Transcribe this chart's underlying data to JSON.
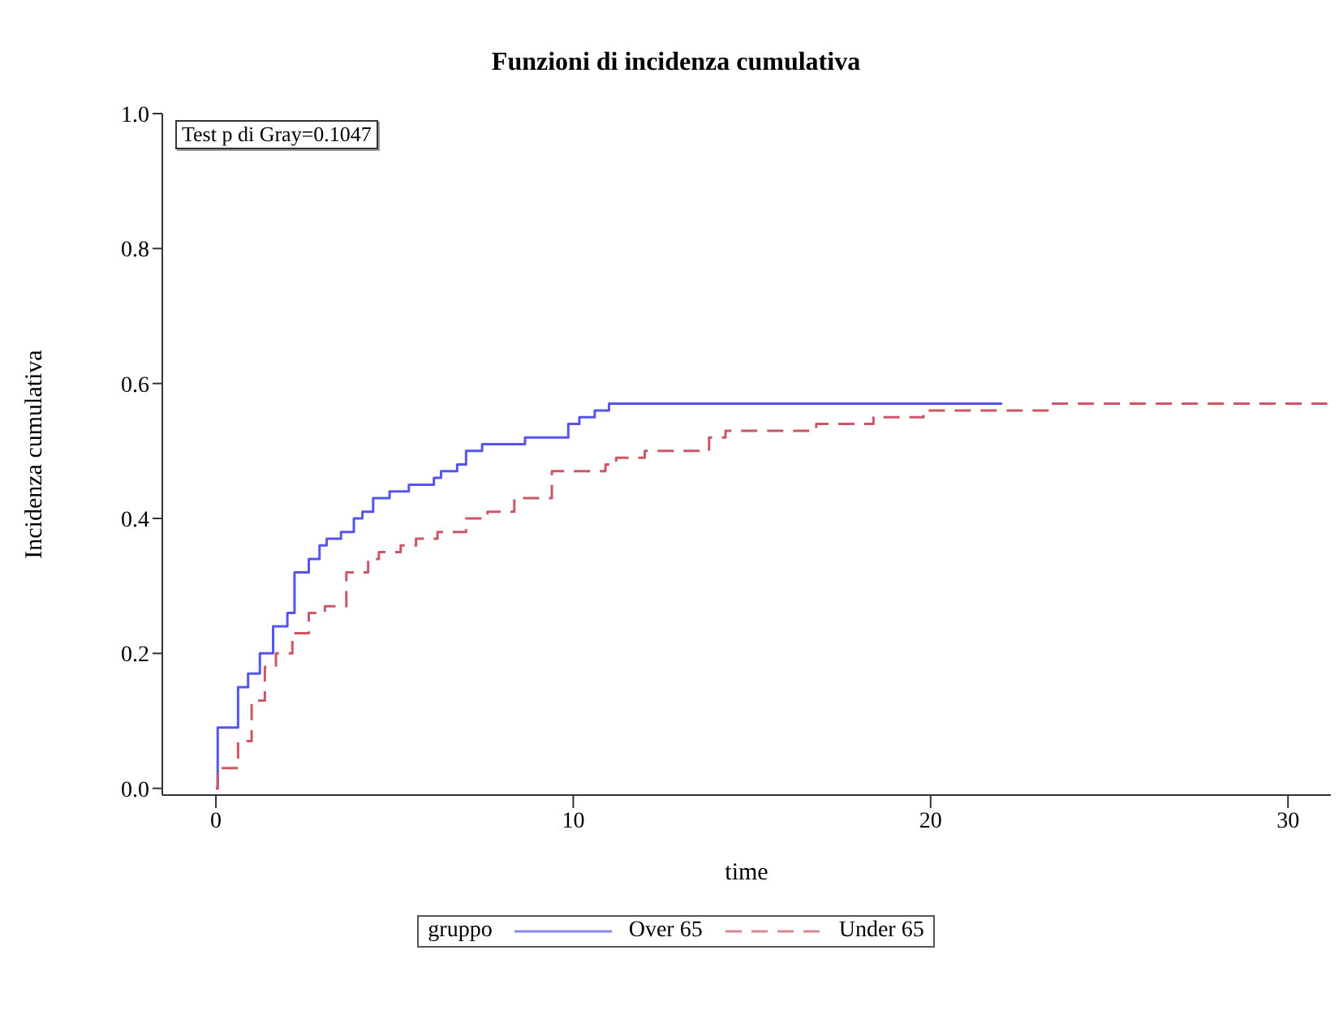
{
  "chart_data": {
    "type": "step",
    "title": "Funzioni di incidenza cumulativa",
    "xlabel": "time",
    "ylabel": "Incidenza cumulativa",
    "legend_title": "gruppo",
    "annotations": [
      "Test p di Gray=0.1047"
    ],
    "xlim": [
      -1.5,
      31.2
    ],
    "xticks": [
      0,
      10,
      20,
      30
    ],
    "ylim": [
      -0.01,
      1.0
    ],
    "yticks": [
      {
        "value": 0,
        "label": "0.0"
      },
      {
        "value": 0.2,
        "label": "0.2"
      },
      {
        "value": 0.4,
        "label": "0.4"
      },
      {
        "value": 0.6,
        "label": "0.6"
      },
      {
        "value": 0.8,
        "label": "0.8"
      },
      {
        "value": 1,
        "label": "1.0"
      }
    ],
    "grid": false,
    "legend": "bottom",
    "marker": "none",
    "series": [
      {
        "name": "Over 65",
        "color": "#5555ee",
        "line_style": "solid",
        "x": [
          0,
          0.05,
          0.62,
          0.9,
          1.23,
          1.45,
          1.6,
          2.0,
          2.2,
          2.6,
          2.9,
          3.1,
          3.5,
          3.86,
          4.1,
          4.4,
          4.86,
          5.4,
          6.1,
          6.3,
          6.75,
          7.0,
          7.45,
          8.65,
          9.86,
          10.17,
          10.6,
          11.0,
          22.0
        ],
        "values": [
          0,
          0.09,
          0.15,
          0.17,
          0.2,
          0.2,
          0.24,
          0.26,
          0.32,
          0.34,
          0.36,
          0.37,
          0.38,
          0.4,
          0.41,
          0.43,
          0.44,
          0.45,
          0.46,
          0.47,
          0.48,
          0.5,
          0.51,
          0.52,
          0.54,
          0.55,
          0.56,
          0.57,
          0.57
        ]
      },
      {
        "name": "Under 65",
        "color": "#cc5566",
        "line_style": "dashed",
        "x": [
          0,
          0.05,
          0.62,
          1.0,
          1.37,
          1.68,
          2.14,
          2.6,
          3.05,
          3.65,
          4.26,
          4.56,
          5.17,
          5.6,
          6.2,
          7.0,
          7.6,
          8.35,
          8.95,
          9.4,
          10.9,
          11.2,
          12.0,
          13.05,
          13.8,
          14.26,
          16.0,
          16.8,
          18.4,
          19.8,
          23.35,
          31.1
        ],
        "values": [
          0,
          0.03,
          0.07,
          0.13,
          0.18,
          0.2,
          0.23,
          0.26,
          0.27,
          0.32,
          0.34,
          0.35,
          0.36,
          0.37,
          0.38,
          0.4,
          0.41,
          0.43,
          0.43,
          0.47,
          0.48,
          0.49,
          0.5,
          0.5,
          0.52,
          0.53,
          0.53,
          0.54,
          0.55,
          0.56,
          0.57,
          0.57
        ]
      }
    ]
  }
}
